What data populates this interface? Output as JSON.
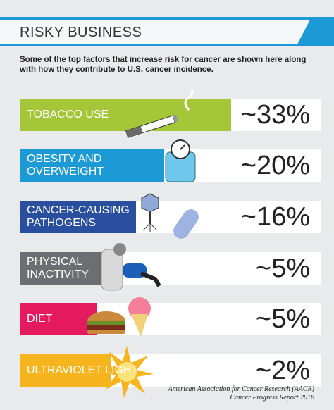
{
  "header": {
    "title": "RISKY BUSINESS",
    "intro": "Some of the top factors that increase risk for cancer are shown here along with how they contribute to U.S. cancer incidence."
  },
  "factors": [
    {
      "label": "TOBACCO USE",
      "value": "~33%"
    },
    {
      "label": "OBESITY AND OVERWEIGHT",
      "value": "~20%"
    },
    {
      "label": "CANCER-CAUSING PATHOGENS",
      "value": "~16%"
    },
    {
      "label": "PHYSICAL INACTIVITY",
      "value": "~5%"
    },
    {
      "label": "DIET",
      "value": "~5%"
    },
    {
      "label": "ULTRAVIOLET LIGHT",
      "value": "~2%"
    }
  ],
  "source": {
    "line1": "American Association for Cancer Research (AACR)",
    "line2": "Cancer Progress Report 2016"
  }
}
